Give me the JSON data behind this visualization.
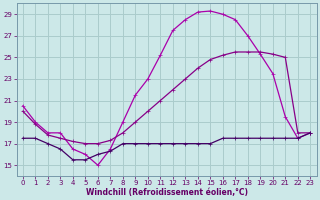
{
  "bg_color": "#cce8e8",
  "grid_color": "#aacccc",
  "line_color_temp": "#aa00aa",
  "line_color_apparent": "#880088",
  "line_color_windchill": "#440066",
  "xlabel": "Windchill (Refroidissement éolien,°C)",
  "xlabel_color": "#660066",
  "tick_color": "#660066",
  "ylim": [
    14.0,
    30.0
  ],
  "xlim": [
    -0.5,
    23.5
  ],
  "yticks": [
    15,
    17,
    19,
    21,
    23,
    25,
    27,
    29
  ],
  "xticks": [
    0,
    1,
    2,
    3,
    4,
    5,
    6,
    7,
    8,
    9,
    10,
    11,
    12,
    13,
    14,
    15,
    16,
    17,
    18,
    19,
    20,
    21,
    22,
    23
  ],
  "temp_x": [
    0,
    1,
    2,
    3,
    4,
    5,
    6,
    7,
    8,
    9,
    10,
    11,
    12,
    13,
    14,
    15,
    16,
    17,
    18,
    19,
    20,
    21,
    22,
    23
  ],
  "temp_y": [
    20.5,
    19.0,
    18.0,
    18.0,
    16.5,
    16.0,
    15.0,
    16.5,
    19.0,
    21.5,
    23.0,
    25.2,
    27.5,
    28.5,
    29.2,
    29.3,
    29.0,
    28.5,
    27.0,
    25.3,
    23.5,
    19.5,
    17.5,
    18.0
  ],
  "apparent_x": [
    0,
    1,
    2,
    3,
    4,
    5,
    6,
    7,
    8,
    9,
    10,
    11,
    12,
    13,
    14,
    15,
    16,
    17,
    18,
    19,
    20,
    21,
    22,
    23
  ],
  "apparent_y": [
    20.0,
    18.8,
    17.8,
    17.5,
    17.2,
    17.0,
    17.0,
    17.3,
    18.0,
    19.0,
    20.0,
    21.0,
    22.0,
    23.0,
    24.0,
    24.8,
    25.2,
    25.5,
    25.5,
    25.5,
    25.3,
    25.0,
    18.0,
    18.0
  ],
  "windchill_x": [
    0,
    1,
    2,
    3,
    4,
    5,
    6,
    7,
    8,
    9,
    10,
    11,
    12,
    13,
    14,
    15,
    16,
    17,
    18,
    19,
    20,
    21,
    22,
    23
  ],
  "windchill_y": [
    17.5,
    17.5,
    17.0,
    16.5,
    15.5,
    15.5,
    16.0,
    16.3,
    17.0,
    17.0,
    17.0,
    17.0,
    17.0,
    17.0,
    17.0,
    17.0,
    17.5,
    17.5,
    17.5,
    17.5,
    17.5,
    17.5,
    17.5,
    18.0
  ]
}
